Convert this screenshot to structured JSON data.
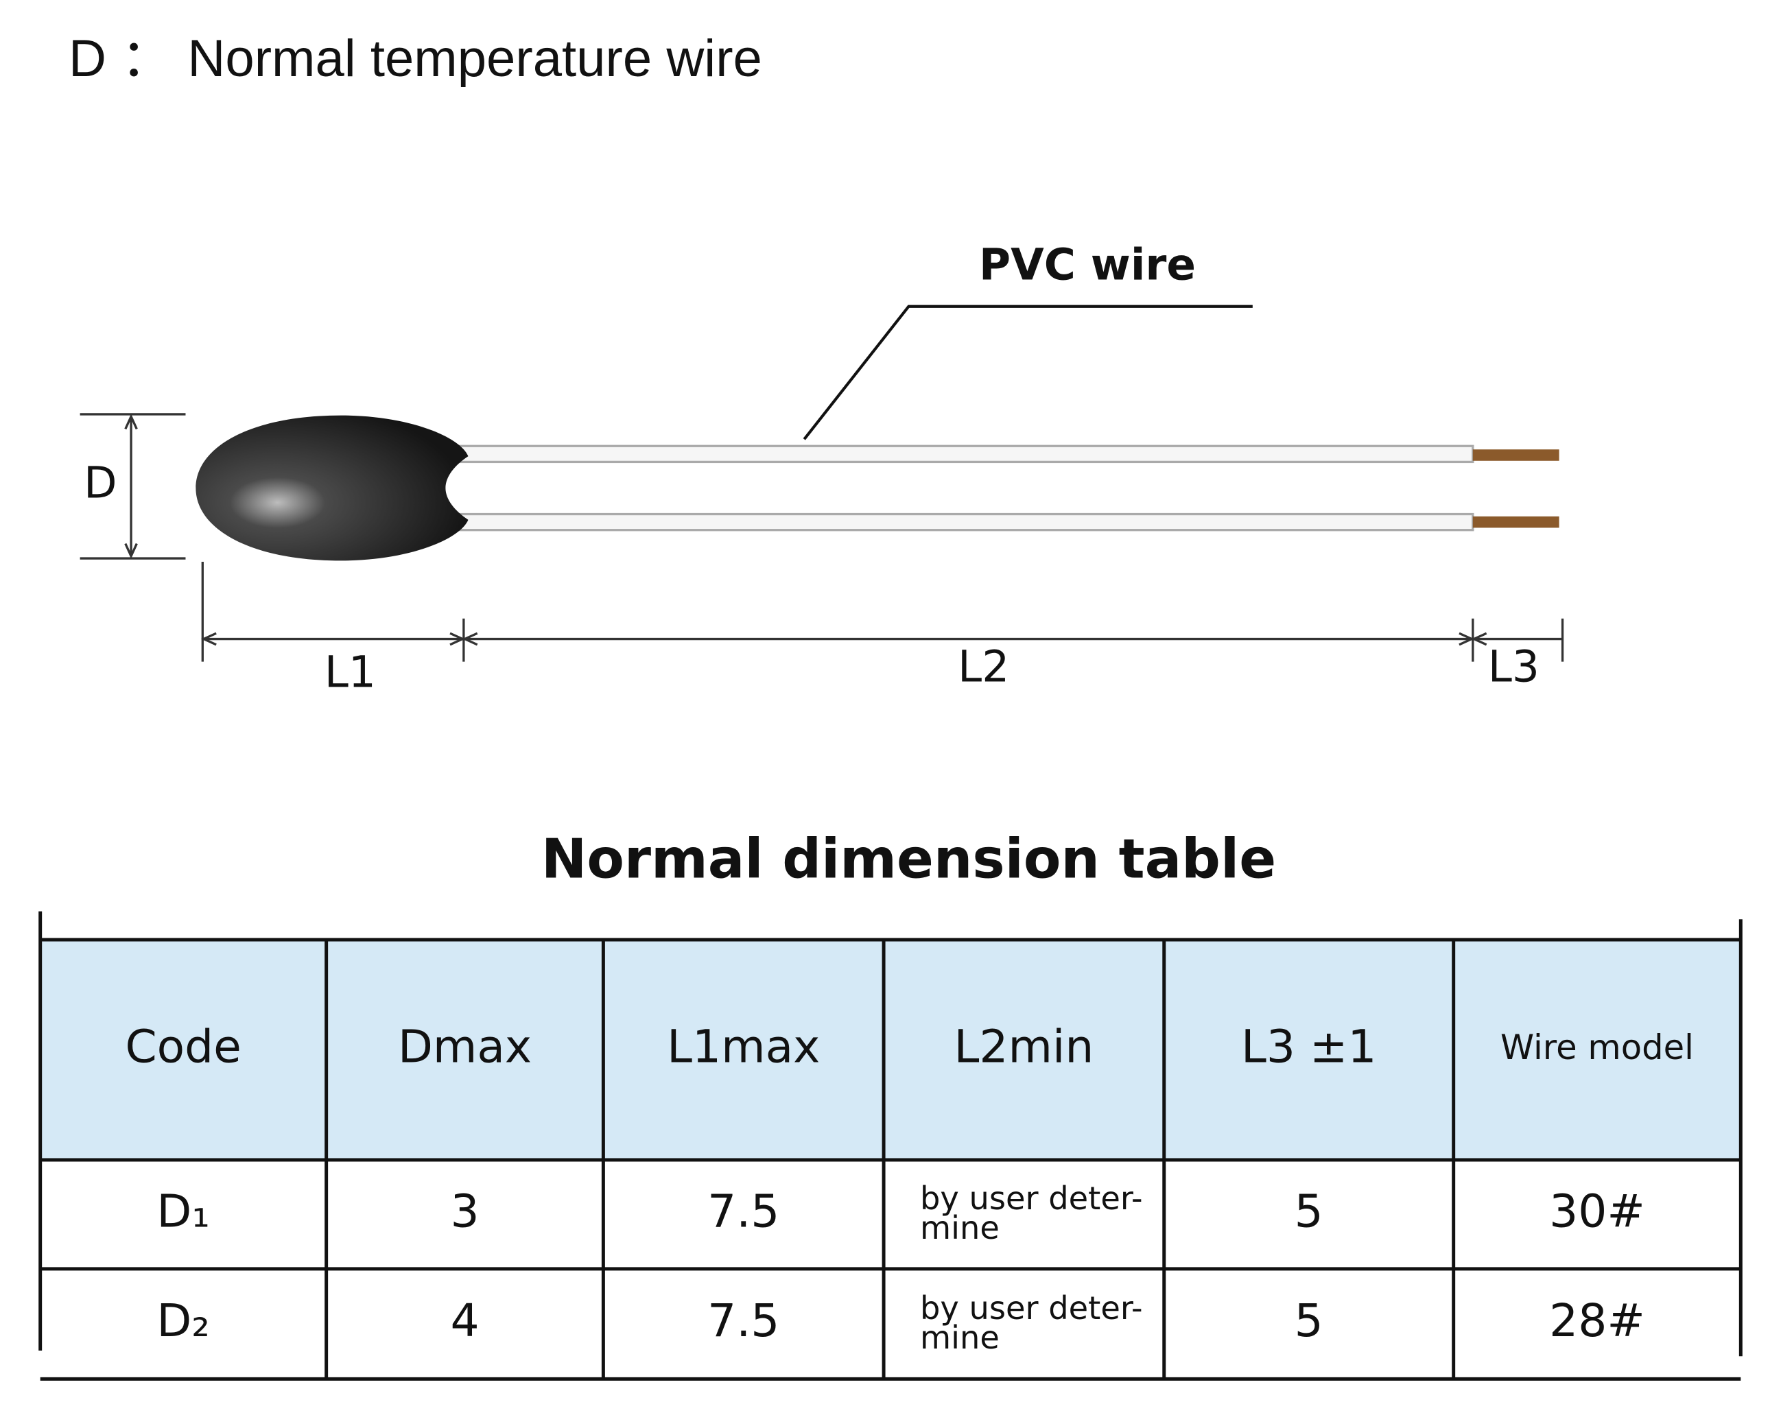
{
  "header": {
    "title": "D ： Normal temperature wire"
  },
  "diagram": {
    "wire_label": "PVC  wire",
    "d_label": "D",
    "l1_label": "L1",
    "l2_label": "L2",
    "l3_label": "L3"
  },
  "table": {
    "title": "Normal dimension table",
    "columns": [
      "Code",
      "Dmax",
      "L1max",
      "L2min",
      "L3 ±1",
      "Wire model"
    ],
    "rows": [
      [
        "D₁",
        "3",
        "7.5",
        [
          "by user deter-",
          "mine"
        ],
        "5",
        "30#"
      ],
      [
        "D₂",
        "4",
        "7.5",
        [
          "by user deter-",
          "mine"
        ],
        "5",
        "28#"
      ]
    ]
  }
}
